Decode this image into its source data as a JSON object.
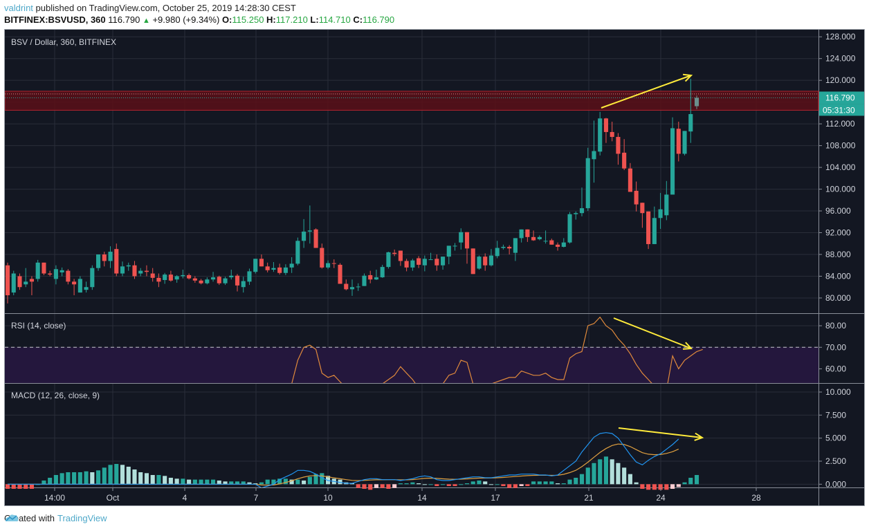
{
  "header": {
    "user": "valdrint",
    "published_text": "published on TradingView.com, October 25, 2019 14:28:30 CEST",
    "symbol": "BITFINEX:BSVUSD, 360",
    "last": "116.790",
    "change": "+9.980 (+9.34%)",
    "o_label": "O:",
    "o": "115.250",
    "h_label": "H:",
    "h": "117.210",
    "l_label": "L:",
    "l": "114.710",
    "c_label": "C:",
    "c": "116.790"
  },
  "panes": {
    "price_label": "BSV / Dollar, 360, BITFINEX",
    "rsi_label": "RSI (14, close)",
    "macd_label": "MACD (12, 26, close, 9)"
  },
  "price_badge": "116.790",
  "countdown_badge": "05:31:30",
  "footer": {
    "created": "Created with",
    "brand": "TradingView"
  },
  "colors": {
    "up": "#26a69a",
    "down": "#ef5350",
    "bg": "#131722",
    "rsi": "#e08a3c",
    "macd": "#2196f3",
    "signal": "#e0a040",
    "arrow": "#ffeb3b",
    "zone": "#8b1a1a"
  },
  "chart_data": [
    {
      "type": "candlestick",
      "title": "BSV / Dollar, 360, BITFINEX",
      "x_ticks": [
        "14:00",
        "Oct",
        "4",
        "7",
        "10",
        "14",
        "17",
        "21",
        "24",
        "28"
      ],
      "y_ticks": [
        80,
        84,
        88,
        92,
        96,
        100,
        104,
        108,
        112,
        116,
        120,
        124,
        128
      ],
      "ylim": [
        77,
        129
      ],
      "resistance_zone": [
        114.5,
        118
      ],
      "last_price": 116.79,
      "annotation": "Yellow arrow drawn from ~114.5 (Oct 21 high) to ~120.5 (Oct 25 high) indicating higher high",
      "ohlc": [
        [
          86,
          86.5,
          79,
          80.5
        ],
        [
          81,
          85,
          80.5,
          84.5
        ],
        [
          84,
          84.5,
          81.5,
          82
        ],
        [
          82.5,
          85.5,
          82,
          83
        ],
        [
          83.5,
          84,
          80.5,
          83
        ],
        [
          83.5,
          87,
          83,
          86.5
        ],
        [
          86.5,
          86.5,
          84.2,
          84.5
        ],
        [
          84.5,
          85,
          84,
          84.3
        ],
        [
          83.5,
          86,
          82.5,
          85.3
        ],
        [
          84.7,
          85.6,
          84,
          85.1
        ],
        [
          85,
          85.3,
          82.5,
          83
        ],
        [
          83,
          83.5,
          80.5,
          82.5
        ],
        [
          81,
          84,
          81,
          83.5
        ],
        [
          81.5,
          83,
          81,
          82
        ],
        [
          82,
          86,
          81.5,
          85.5
        ],
        [
          85.5,
          88,
          85,
          88
        ],
        [
          88,
          88.5,
          85.8,
          86.8
        ],
        [
          86.8,
          89.5,
          85.5,
          88.5
        ],
        [
          89,
          90,
          84,
          84.5
        ],
        [
          84.5,
          86.7,
          84,
          85.8
        ],
        [
          85.8,
          86.5,
          85,
          86
        ],
        [
          86,
          86.8,
          83.5,
          84
        ],
        [
          84.5,
          85.5,
          84,
          85
        ],
        [
          85,
          86,
          84,
          84.8
        ],
        [
          84.5,
          85.5,
          83,
          83.7
        ],
        [
          83.7,
          84.5,
          82,
          83
        ],
        [
          83.3,
          84.6,
          82.6,
          84.3
        ],
        [
          84.3,
          85,
          83,
          83.2
        ],
        [
          83.4,
          84.2,
          82.8,
          84
        ],
        [
          84,
          85.2,
          83.6,
          84.2
        ],
        [
          84.2,
          84.5,
          83.4,
          83.6
        ],
        [
          83.6,
          84,
          82.8,
          83.2
        ],
        [
          83.2,
          83.5,
          82.5,
          82.7
        ],
        [
          82.7,
          83.8,
          82.5,
          83.4
        ],
        [
          83.4,
          84.8,
          83,
          83.8
        ],
        [
          83.9,
          84.1,
          82.4,
          82.7
        ],
        [
          82.7,
          83.9,
          82.4,
          83.6
        ],
        [
          83.8,
          85.2,
          83.4,
          84.1
        ],
        [
          84.1,
          84.4,
          81.2,
          82.3
        ],
        [
          82,
          83.9,
          81,
          83.1
        ],
        [
          83,
          85.4,
          82.4,
          84.9
        ],
        [
          84.8,
          87.2,
          84.5,
          87.2
        ],
        [
          87.2,
          88,
          86,
          85.8
        ],
        [
          85.8,
          86.5,
          84.7,
          85.1
        ],
        [
          85.2,
          86.6,
          84.8,
          85.5
        ],
        [
          85.6,
          86.3,
          84.3,
          84.6
        ],
        [
          84.6,
          86.2,
          84.2,
          85.6
        ],
        [
          85.6,
          87.5,
          84.6,
          86.3
        ],
        [
          86.3,
          91.1,
          86,
          90.5
        ],
        [
          90.5,
          94.5,
          89.2,
          92.2
        ],
        [
          92.2,
          97,
          90,
          92.4
        ],
        [
          92.6,
          92.8,
          89.4,
          89.2
        ],
        [
          89.2,
          90,
          85.4,
          85.6
        ],
        [
          85.6,
          86.9,
          85.3,
          86.4
        ],
        [
          86.4,
          87.1,
          85.5,
          86.3
        ],
        [
          86.1,
          86.4,
          82.6,
          82.6
        ],
        [
          82.6,
          83.4,
          81.4,
          81.6
        ],
        [
          81.6,
          83.4,
          80.4,
          82.0
        ],
        [
          82,
          82.7,
          81.3,
          82.1
        ],
        [
          82.2,
          84.5,
          82.3,
          84.1
        ],
        [
          84.2,
          85,
          82.7,
          83.4
        ],
        [
          83.4,
          85.2,
          83.3,
          83.8
        ],
        [
          83.8,
          86.1,
          83.7,
          85.7
        ],
        [
          85.7,
          88.5,
          85.4,
          88.4
        ],
        [
          88.3,
          88.9,
          87.7,
          88.1
        ],
        [
          88.7,
          88.1,
          85.9,
          86.8
        ],
        [
          86.8,
          87.2,
          84.9,
          85.6
        ],
        [
          85.6,
          87.2,
          85,
          86.9
        ],
        [
          87.3,
          87.7,
          85.5,
          86.1
        ],
        [
          86,
          87.8,
          84.9,
          87.2
        ],
        [
          87.1,
          88.3,
          87.2,
          87.1
        ],
        [
          87.2,
          88,
          85,
          86
        ],
        [
          86,
          87.6,
          85.2,
          87.6
        ],
        [
          87.6,
          89.6,
          86.2,
          89.6
        ],
        [
          89.6,
          90.1,
          88.7,
          89.6
        ],
        [
          90.2,
          92.8,
          88.9,
          92.1
        ],
        [
          92.1,
          91.8,
          86.3,
          89.1
        ],
        [
          89.1,
          88.7,
          84.5,
          84.4
        ],
        [
          85.4,
          87.8,
          85.2,
          87.6
        ],
        [
          87.6,
          88.2,
          85,
          86
        ],
        [
          86,
          89,
          85.8,
          87.8
        ],
        [
          87.7,
          90.5,
          87.3,
          89.2
        ],
        [
          89.2,
          89.8,
          88.9,
          89.4
        ],
        [
          89.4,
          89.7,
          88,
          89.1
        ],
        [
          88.3,
          90.8,
          86.8,
          91
        ],
        [
          91,
          92.6,
          90.2,
          92.6
        ],
        [
          92.6,
          92.4,
          90.3,
          91.2
        ],
        [
          91.2,
          92.4,
          90.5,
          90.6
        ],
        [
          90.8,
          91.5,
          90.6,
          91.2
        ],
        [
          90.5,
          92.4,
          90,
          90.5
        ],
        [
          90.6,
          90.9,
          89.9,
          89.8
        ],
        [
          89.8,
          90.2,
          88.7,
          89.4
        ],
        [
          89.4,
          91,
          89.3,
          90.2
        ],
        [
          90.2,
          95.8,
          90,
          95.4
        ],
        [
          95.4,
          95.9,
          94.4,
          95.6
        ],
        [
          95.6,
          100.3,
          95,
          96.5
        ],
        [
          96.5,
          107.6,
          96,
          105.7
        ],
        [
          105.5,
          112.6,
          101.2,
          107
        ],
        [
          106.9,
          114.2,
          106.2,
          113
        ],
        [
          113,
          113.1,
          108.5,
          110.5
        ],
        [
          110.5,
          112.4,
          108.8,
          109.6
        ],
        [
          109.6,
          110.3,
          104.5,
          106.5
        ],
        [
          106.7,
          109.2,
          103.5,
          103.8
        ],
        [
          103.8,
          104.8,
          100,
          99.5
        ],
        [
          99.7,
          101.4,
          95.9,
          97.2
        ],
        [
          97.5,
          96.6,
          92.9,
          95.6
        ],
        [
          95.9,
          94.4,
          89,
          89.9
        ],
        [
          89.9,
          96.8,
          93.8,
          94.7
        ],
        [
          94.7,
          99.3,
          92.7,
          96.3
        ],
        [
          95.2,
          101.5,
          94.3,
          99
        ],
        [
          99,
          113.2,
          99.5,
          111.2
        ],
        [
          111.1,
          112.4,
          105.1,
          106.5
        ],
        [
          106.5,
          107.1,
          106.2,
          110.7
        ],
        [
          110.6,
          120.3,
          108.5,
          113.8
        ],
        [
          115.25,
          117.21,
          114.71,
          116.79
        ]
      ]
    },
    {
      "type": "line",
      "title": "RSI (14, close)",
      "y_ticks": [
        60,
        70,
        80
      ],
      "ylim": [
        53,
        85
      ],
      "overbought": 70,
      "annotation": "Yellow arrow drawn from RSI ~84 (Oct 21) down to ~69 (Oct 25) indicating bearish divergence",
      "values": [
        52,
        50,
        51,
        52,
        52,
        52,
        51,
        50,
        51,
        51,
        50,
        50,
        51,
        51,
        50,
        52,
        51,
        51,
        50,
        50,
        50,
        50,
        50,
        50,
        50,
        50,
        50,
        50,
        50,
        50,
        50,
        50,
        50,
        50,
        50,
        50,
        50,
        50,
        50,
        50,
        51,
        52,
        53,
        52,
        53,
        52,
        52,
        53,
        64,
        70,
        71,
        69,
        58,
        56,
        57,
        54,
        51,
        50,
        49,
        50,
        51,
        52,
        53,
        55,
        57,
        61,
        58,
        55,
        51,
        51,
        52,
        52,
        53,
        57,
        58,
        64,
        63,
        53,
        51,
        52,
        53,
        54,
        55,
        56,
        56,
        59,
        58,
        57,
        57,
        58,
        56,
        55,
        55,
        65,
        67,
        68,
        80,
        81,
        84,
        80,
        78,
        74,
        71,
        67,
        62,
        58,
        55,
        52,
        51,
        50,
        66,
        60,
        64,
        66,
        68,
        69
      ]
    },
    {
      "type": "bar+line",
      "title": "MACD (12, 26, close, 9)",
      "y_ticks": [
        0,
        2.5,
        5,
        7.5,
        10
      ],
      "ylim": [
        -0.4,
        10.5
      ],
      "annotation": "Yellow arrow drawn from MACD ~5.7 (Oct 21-22) to ~5.0 (Oct 25) indicating bearish divergence",
      "histogram": [
        -0.5,
        -0.5,
        -0.5,
        -0.5,
        -0.5,
        0,
        0.4,
        0.7,
        1,
        1.2,
        1.3,
        1.3,
        1.3,
        1.4,
        1.3,
        1.5,
        1.8,
        2.1,
        2.2,
        2.1,
        1.9,
        1.6,
        1.3,
        1.2,
        1,
        1,
        0.9,
        0.7,
        0.6,
        0.6,
        0.5,
        0.5,
        0.5,
        0.5,
        0.5,
        0.4,
        0.3,
        0.3,
        0.3,
        0.3,
        0.2,
        0.1,
        0.2,
        0.5,
        0.5,
        0.6,
        0.6,
        0.5,
        0.5,
        0.4,
        0.8,
        1.1,
        1.2,
        0.9,
        0.6,
        0.5,
        0.2,
        0.1,
        -0.4,
        -0.5,
        -0.6,
        -0.4,
        -0.4,
        -0.5,
        -0.4,
        0.1,
        0.1,
        0.2,
        0.1,
        0,
        0,
        -0.2,
        0,
        -0.2,
        -0.2,
        0,
        0.1,
        0.3,
        0.4,
        0.3,
        0,
        0,
        -0.2,
        -0.4,
        -0.4,
        -0.2,
        -0.2,
        0.3,
        0.3,
        0.3,
        0.3,
        0.1,
        0.1,
        0.5,
        0.7,
        1.1,
        1.8,
        2.3,
        2.7,
        3,
        2.7,
        2.3,
        1.8,
        1.1,
        0.2,
        -0.5,
        -0.6,
        -0.6,
        -0.6,
        -0.6,
        -0.5,
        -0.3,
        0.2,
        0.7,
        1
      ],
      "macd": [
        0,
        0,
        0,
        0,
        0,
        0,
        0,
        0,
        0,
        0,
        0,
        0,
        0,
        0,
        0,
        0,
        0,
        0,
        0,
        0,
        0,
        0,
        0,
        0,
        0,
        0,
        0,
        0,
        0,
        0,
        0,
        0,
        0,
        0,
        0,
        0,
        0,
        0,
        0,
        0,
        0,
        0,
        -0.4,
        -0.2,
        0,
        0.5,
        0.8,
        1.1,
        1.5,
        1.5,
        1.4,
        1.1,
        0.7,
        0.4,
        0.3,
        0.2,
        0.1,
        0.1,
        0.3,
        0.5,
        0.6,
        0.6,
        0.5,
        0.5,
        0.5,
        0.4,
        0.5,
        0.6,
        0.8,
        0.9,
        0.8,
        0.5,
        0.4,
        0.4,
        0.5,
        0.6,
        0.7,
        0.8,
        0.8,
        0.7,
        0.7,
        0.8,
        0.9,
        1,
        1,
        1.1,
        1.1,
        1.1,
        1,
        1,
        0.9,
        1,
        1.5,
        2,
        2.5,
        3.5,
        4.3,
        5.1,
        5.5,
        5.6,
        5.5,
        5,
        4.1,
        3.2,
        2.4,
        2.1,
        2.6,
        3,
        3.3,
        3.8,
        4.3,
        4.9
      ]
    }
  ]
}
